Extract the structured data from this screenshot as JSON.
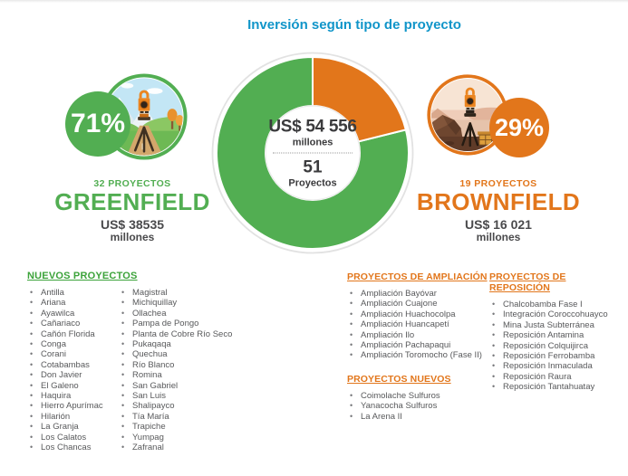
{
  "title": "Inversión según tipo de proyecto",
  "palette": {
    "green": "#52AE52",
    "orange": "#E2761B",
    "title-blue": "#1095C9",
    "gray-text": "#58595B"
  },
  "donut": {
    "total_amount": "US$ 54 556",
    "total_unit": "millones",
    "projects_count": "51",
    "projects_label": "Proyectos"
  },
  "greenfield": {
    "percent": "71%",
    "projects_label": "32 PROYECTOS",
    "name": "GREENFIELD",
    "amount": "US$ 38535",
    "unit": "millones"
  },
  "brownfield": {
    "percent": "29%",
    "projects_label": "19 PROYECTOS",
    "name": "BROWNFIELD",
    "amount": "US$ 16 021",
    "unit": "millones"
  },
  "sections": {
    "nuevos": {
      "title": "NUEVOS PROYECTOS",
      "col1": [
        "Antilla",
        "Ariana",
        "Ayawilca",
        "Cañariaco",
        "Cañón Florida",
        "Conga",
        "Corani",
        "Cotabambas",
        "Don Javier",
        "El Galeno",
        "Haquira",
        "Hierro Apurímac",
        "Hilarión",
        "La Granja",
        "Los Calatos",
        "Los Chancas"
      ],
      "col2": [
        "Magistral",
        "Michiquillay",
        "Ollachea",
        "Pampa de Pongo",
        "Planta de Cobre Río Seco",
        "Pukaqaqa",
        "Quechua",
        "Río Blanco",
        "Romina",
        "San Gabriel",
        "San Luis",
        "Shalipayco",
        "Tía María",
        "Trapiche",
        "Yumpag",
        "Zafranal"
      ]
    },
    "ampliacion": {
      "title": "PROYECTOS DE AMPLIACIÓN",
      "items": [
        "Ampliación Bayóvar",
        "Ampliación Cuajone",
        "Ampliación Huachocolpa",
        "Ampliación Huancapetí",
        "Ampliación Ilo",
        "Ampliación Pachapaqui",
        "Ampliación Toromocho (Fase II)"
      ]
    },
    "proyectos_nuevos": {
      "title": "PROYECTOS NUEVOS",
      "items": [
        "Coimolache Sulfuros",
        "Yanacocha Sulfuros",
        "La Arena II"
      ]
    },
    "reposicion": {
      "title": "PROYECTOS DE REPOSICIÓN",
      "groups": [
        [
          "Chalcobamba Fase I",
          "Integración Coroccohuayco"
        ],
        [
          "Mina Justa Subterránea",
          "Reposición Antamina",
          "Reposición Colquijirca",
          "Reposición Ferrobamba",
          "Reposición Inmaculada",
          "Reposición Raura",
          "Reposición Tantahuatay"
        ]
      ]
    }
  },
  "chart_data": {
    "type": "pie",
    "title": "Inversión según tipo de proyecto",
    "labels": [
      "Greenfield",
      "Brownfield"
    ],
    "values": [
      71,
      29
    ],
    "unit": "%",
    "colors": [
      "#52AE52",
      "#E2761B"
    ],
    "center_label": {
      "total": "US$ 54 556 millones",
      "projects": "51 Proyectos"
    },
    "segments": [
      {
        "label": "Greenfield",
        "percent": 71,
        "projects": 32,
        "amount": "US$ 38535 millones"
      },
      {
        "label": "Brownfield",
        "percent": 29,
        "projects": 19,
        "amount": "US$ 16 021 millones"
      }
    ],
    "legend_position": "none",
    "grid": false
  }
}
